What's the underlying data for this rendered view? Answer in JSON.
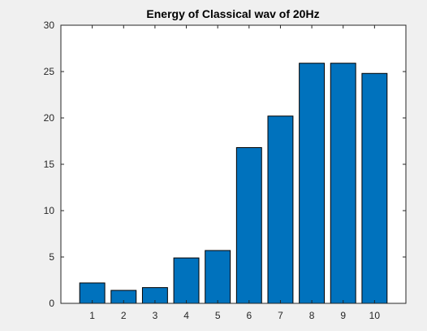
{
  "chart_data": {
    "type": "bar",
    "title": "Energy of Classical wav of 20Hz",
    "xlabel": "",
    "ylabel": "",
    "categories": [
      "1",
      "2",
      "3",
      "4",
      "5",
      "6",
      "7",
      "8",
      "9",
      "10"
    ],
    "values": [
      2.2,
      1.4,
      1.7,
      4.9,
      5.7,
      16.8,
      20.2,
      25.9,
      25.9,
      24.8
    ],
    "ylim": [
      0,
      30
    ],
    "yticks": [
      0,
      5,
      10,
      15,
      20,
      25,
      30
    ],
    "grid": false,
    "bar_color": "#0072bd",
    "bar_edge_color": "#000000"
  },
  "colors": {
    "figure_background": "#f0f0f0",
    "axes_background": "#ffffff",
    "axis_color": "#262626"
  }
}
